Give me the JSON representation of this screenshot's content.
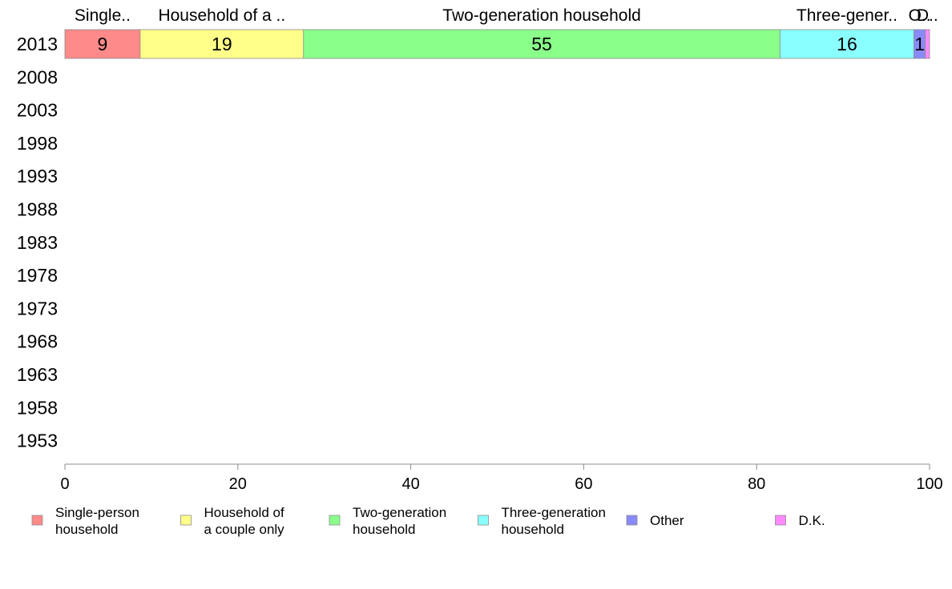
{
  "chart_data": {
    "type": "bar",
    "orientation": "horizontal",
    "stacked": true,
    "categories": [
      "2013",
      "2008",
      "2003",
      "1998",
      "1993",
      "1988",
      "1983",
      "1978",
      "1973",
      "1968",
      "1963",
      "1958",
      "1953"
    ],
    "series": [
      {
        "name": "Single-person household",
        "legend": [
          "Single-person",
          "household"
        ],
        "top_label": "Single..",
        "color": "#ff8a8a",
        "values": [
          8.7,
          null,
          null,
          null,
          null,
          null,
          null,
          null,
          null,
          null,
          null,
          null,
          null
        ],
        "labels": [
          "9"
        ]
      },
      {
        "name": "Household of a couple only",
        "legend": [
          "Household of",
          "a couple only"
        ],
        "top_label": "Household of a ..",
        "color": "#ffff8a",
        "values": [
          18.9,
          null,
          null,
          null,
          null,
          null,
          null,
          null,
          null,
          null,
          null,
          null,
          null
        ],
        "labels": [
          "19"
        ]
      },
      {
        "name": "Two-generation household",
        "legend": [
          "Two-generation",
          "household"
        ],
        "top_label": "Two-generation household",
        "color": "#8aff8a",
        "values": [
          55.1,
          null,
          null,
          null,
          null,
          null,
          null,
          null,
          null,
          null,
          null,
          null,
          null
        ],
        "labels": [
          "55"
        ]
      },
      {
        "name": "Three-generation household",
        "legend": [
          "Three-generation",
          "household"
        ],
        "top_label": "Three-gener..",
        "color": "#8affff",
        "values": [
          15.5,
          null,
          null,
          null,
          null,
          null,
          null,
          null,
          null,
          null,
          null,
          null,
          null
        ],
        "labels": [
          "16"
        ]
      },
      {
        "name": "Other",
        "legend": [
          "Other"
        ],
        "top_label": "O..",
        "color": "#8a8aff",
        "values": [
          1.3,
          null,
          null,
          null,
          null,
          null,
          null,
          null,
          null,
          null,
          null,
          null,
          null
        ],
        "labels": [
          "1"
        ]
      },
      {
        "name": "D.K.",
        "legend": [
          "D.K."
        ],
        "top_label": "D..",
        "color": "#ff8aff",
        "values": [
          0.5,
          null,
          null,
          null,
          null,
          null,
          null,
          null,
          null,
          null,
          null,
          null,
          null
        ],
        "labels": [
          ""
        ]
      }
    ],
    "xlim": [
      0,
      100
    ],
    "xticks": [
      "0",
      "20",
      "40",
      "60",
      "80",
      "100"
    ],
    "grid": false,
    "legend_position": "bottom"
  }
}
